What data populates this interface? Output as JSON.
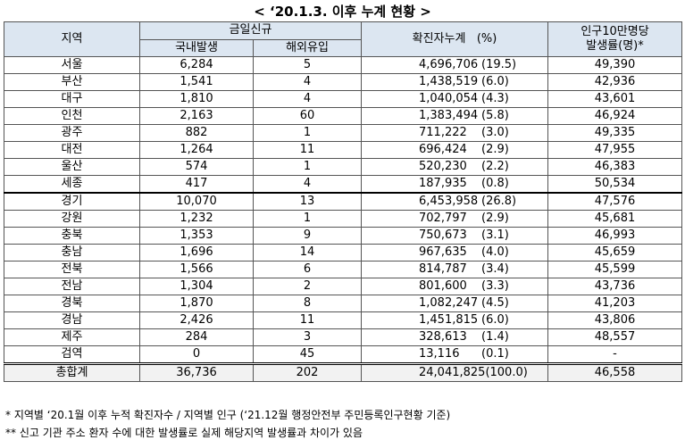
{
  "title": "< ‘20.1.3. 이후 누계 현황 >",
  "header": {
    "region": "지역",
    "new_today": "금일신규",
    "domestic": "국내발생",
    "overseas": "해외유입",
    "cumulative": "확진자누계",
    "percent": "(%)",
    "rate_line1": "인구10만명당",
    "rate_line2": "발생률(명)*"
  },
  "table": {
    "rows": [
      [
        "서울",
        "6,284",
        "5",
        "4,696,706",
        "(19.5)",
        "49,390"
      ],
      [
        "부산",
        "1,541",
        "4",
        "1,438,519",
        "(6.0)",
        "42,936"
      ],
      [
        "대구",
        "1,810",
        "4",
        "1,040,054",
        "(4.3)",
        "43,601"
      ],
      [
        "인천",
        "2,163",
        "60",
        "1,383,494",
        "(5.8)",
        "46,924"
      ],
      [
        "광주",
        "882",
        "1",
        "711,222",
        "(3.0)",
        "49,335"
      ],
      [
        "대전",
        "1,264",
        "11",
        "696,424",
        "(2.9)",
        "47,955"
      ],
      [
        "울산",
        "574",
        "1",
        "520,230",
        "(2.2)",
        "46,383"
      ],
      [
        "세종",
        "417",
        "4",
        "187,935",
        "(0.8)",
        "50,534"
      ],
      [
        "경기",
        "10,070",
        "13",
        "6,453,958",
        "(26.8)",
        "47,576"
      ],
      [
        "강원",
        "1,232",
        "1",
        "702,797",
        "(2.9)",
        "45,681"
      ],
      [
        "충북",
        "1,353",
        "9",
        "750,673",
        "(3.1)",
        "46,993"
      ],
      [
        "충남",
        "1,696",
        "14",
        "967,635",
        "(4.0)",
        "45,659"
      ],
      [
        "전북",
        "1,566",
        "6",
        "814,787",
        "(3.4)",
        "45,599"
      ],
      [
        "전남",
        "1,304",
        "2",
        "801,600",
        "(3.3)",
        "43,736"
      ],
      [
        "경북",
        "1,870",
        "8",
        "1,082,247",
        "(4.5)",
        "41,203"
      ],
      [
        "경남",
        "2,426",
        "11",
        "1,451,815",
        "(6.0)",
        "43,806"
      ],
      [
        "제주",
        "284",
        "3",
        "328,613",
        "(1.4)",
        "48,557"
      ],
      [
        "검역",
        "0",
        "45",
        "13,116",
        "(0.1)",
        "-"
      ],
      [
        "총합계",
        "36,736",
        "202",
        "24,041,825",
        "(100.0)",
        "46,558"
      ]
    ]
  },
  "footnotes": [
    "* 지역별 ‘20.1월 이후 누적 확진자수 / 지역별 인구 (‘21.12월 행정안전부 주민등록인구현황 기준)",
    "** 신고 기관 주소 환자 수에 대한 발생률로 실제 해당지역 발생률과 차이가 있음"
  ]
}
